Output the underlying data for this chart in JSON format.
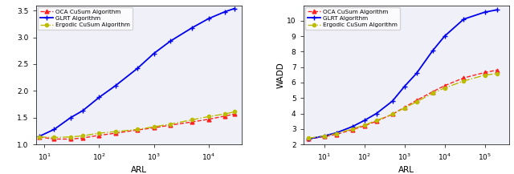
{
  "left": {
    "xlabel": "ARL",
    "ylabel": "",
    "xlim_log": [
      7,
      40000
    ],
    "xticks": [
      10,
      100,
      1000,
      10000
    ],
    "xtick_labels": [
      "$10^1$",
      "$10^2$",
      "$10^3$",
      "$10^4$"
    ],
    "ylim": [
      1.0,
      3.6
    ],
    "yticks": [
      1.0,
      1.5,
      2.0,
      2.5,
      3.0,
      3.5
    ],
    "x_data": [
      8,
      15,
      30,
      50,
      100,
      200,
      500,
      1000,
      2000,
      5000,
      10000,
      20000,
      30000
    ],
    "oca_y": [
      1.14,
      1.1,
      1.1,
      1.12,
      1.17,
      1.21,
      1.27,
      1.31,
      1.36,
      1.42,
      1.47,
      1.53,
      1.57
    ],
    "glrt_y": [
      1.15,
      1.28,
      1.5,
      1.63,
      1.88,
      2.1,
      2.42,
      2.7,
      2.93,
      3.18,
      3.35,
      3.48,
      3.54
    ],
    "ergodic_y": [
      1.14,
      1.13,
      1.14,
      1.16,
      1.21,
      1.24,
      1.28,
      1.33,
      1.38,
      1.46,
      1.52,
      1.57,
      1.61
    ]
  },
  "right": {
    "xlabel": "ARL",
    "ylabel": "WADD",
    "xlim_log": [
      3,
      400000
    ],
    "xticks": [
      10,
      100,
      1000,
      10000,
      100000
    ],
    "xtick_labels": [
      "$10^1$",
      "$10^2$",
      "$10^3$",
      "$10^4$",
      "$10^5$"
    ],
    "ylim": [
      2,
      11
    ],
    "yticks": [
      2,
      3,
      4,
      5,
      6,
      7,
      8,
      9,
      10
    ],
    "x_data": [
      4,
      10,
      20,
      50,
      100,
      200,
      500,
      1000,
      2000,
      5000,
      10000,
      30000,
      100000,
      200000
    ],
    "oca_y": [
      2.35,
      2.5,
      2.65,
      2.95,
      3.2,
      3.5,
      3.95,
      4.4,
      4.85,
      5.4,
      5.8,
      6.3,
      6.65,
      6.8
    ],
    "glrt_y": [
      2.35,
      2.55,
      2.75,
      3.15,
      3.55,
      4.0,
      4.8,
      5.75,
      6.6,
      8.05,
      9.0,
      10.1,
      10.55,
      10.7
    ],
    "ergodic_y": [
      2.4,
      2.55,
      2.7,
      3.0,
      3.25,
      3.55,
      3.95,
      4.35,
      4.75,
      5.3,
      5.65,
      6.1,
      6.48,
      6.58
    ]
  },
  "legend_labels": [
    "OCA CuSum Algorithm",
    "GLRT Algorithm",
    "Ergodic CuSum Algorithm"
  ],
  "colors": {
    "oca": "#FF2020",
    "glrt": "#0000EE",
    "ergodic": "#BBBB00"
  },
  "bg_color": "#f0f0f8"
}
